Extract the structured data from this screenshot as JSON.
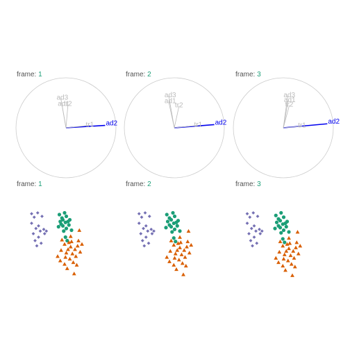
{
  "frame_label": "frame:",
  "frames": [
    1,
    2,
    3
  ],
  "colors": {
    "title_text": "#555555",
    "frame_number": "#1b9e77",
    "circle": "#cccccc",
    "axis_muted": "#bbbbbb",
    "axis_highlight": "#0000ee",
    "cluster_a": "#7570b3",
    "cluster_b": "#1b9e77",
    "cluster_c": "#d95f02"
  },
  "chart_data": [
    {
      "type": "biplot-axes",
      "frame": 1,
      "highlight": "ad2",
      "axes": [
        {
          "name": "ad1",
          "x": -0.1,
          "y": 0.58
        },
        {
          "name": "ad2",
          "x": 0.98,
          "y": 0.06
        },
        {
          "name": "ad3",
          "x": -0.13,
          "y": 0.74
        },
        {
          "name": "tr1",
          "x": 0.6,
          "y": 0.06
        },
        {
          "name": "tr2",
          "x": 0.05,
          "y": 0.58
        }
      ]
    },
    {
      "type": "biplot-axes",
      "frame": 2,
      "highlight": "ad2",
      "axes": [
        {
          "name": "ad1",
          "x": -0.14,
          "y": 0.65
        },
        {
          "name": "ad2",
          "x": 1.0,
          "y": 0.08
        },
        {
          "name": "ad3",
          "x": -0.14,
          "y": 0.8
        },
        {
          "name": "tr1",
          "x": 0.6,
          "y": 0.06
        },
        {
          "name": "tr2",
          "x": 0.12,
          "y": 0.55
        }
      ]
    },
    {
      "type": "biplot-axes",
      "frame": 3,
      "highlight": "ad2",
      "axes": [
        {
          "name": "ad1",
          "x": 0.12,
          "y": 0.68
        },
        {
          "name": "ad2",
          "x": 1.1,
          "y": 0.1
        },
        {
          "name": "ad3",
          "x": 0.11,
          "y": 0.8
        },
        {
          "name": "tr1",
          "x": 0.47,
          "y": 0.04
        },
        {
          "name": "tr2",
          "x": 0.15,
          "y": 0.56
        }
      ]
    },
    {
      "type": "scatter",
      "frame": 1,
      "series": [
        {
          "group": "a",
          "points": [
            [
              -3.0,
              2.9
            ],
            [
              -2.3,
              3.0
            ],
            [
              -2.7,
              2.5
            ],
            [
              -1.8,
              2.6
            ],
            [
              -3.0,
              1.8
            ],
            [
              -2.2,
              1.5
            ],
            [
              -1.6,
              1.1
            ],
            [
              -2.5,
              1.2
            ],
            [
              -2.0,
              0.9
            ],
            [
              -2.8,
              0.6
            ],
            [
              -2.2,
              0.2
            ],
            [
              -1.5,
              0.6
            ],
            [
              -2.6,
              -0.2
            ],
            [
              -1.9,
              -0.5
            ],
            [
              -2.4,
              -0.8
            ],
            [
              -1.3,
              0.9
            ]
          ]
        },
        {
          "group": "b",
          "points": [
            [
              0.2,
              2.8
            ],
            [
              0.8,
              3.0
            ],
            [
              0.5,
              2.4
            ],
            [
              1.0,
              2.6
            ],
            [
              1.4,
              2.2
            ],
            [
              0.3,
              2.0
            ],
            [
              0.9,
              1.9
            ],
            [
              1.3,
              1.6
            ],
            [
              0.6,
              1.5
            ],
            [
              0.1,
              1.4
            ],
            [
              1.0,
              1.2
            ],
            [
              1.6,
              1.0
            ],
            [
              0.7,
              0.9
            ],
            [
              0.4,
              1.7
            ],
            [
              1.2,
              2.0
            ],
            [
              0.9,
              0.2
            ],
            [
              1.1,
              -0.2
            ],
            [
              0.6,
              2.2
            ]
          ]
        },
        {
          "group": "c",
          "points": [
            [
              2.5,
              1.0
            ],
            [
              1.5,
              0.3
            ],
            [
              0.5,
              -0.1
            ],
            [
              1.6,
              -0.3
            ],
            [
              2.4,
              -0.2
            ],
            [
              0.8,
              -0.6
            ],
            [
              1.5,
              -0.9
            ],
            [
              2.3,
              -0.8
            ],
            [
              1.2,
              -1.2
            ],
            [
              0.4,
              -1.3
            ],
            [
              2.0,
              -1.2
            ],
            [
              1.0,
              -1.6
            ],
            [
              2.6,
              -1.5
            ],
            [
              1.7,
              -1.7
            ],
            [
              0.0,
              -2.0
            ],
            [
              0.9,
              -2.1
            ],
            [
              1.4,
              -2.3
            ],
            [
              2.1,
              -2.0
            ],
            [
              0.3,
              -2.5
            ],
            [
              1.8,
              -2.7
            ],
            [
              0.8,
              -2.9
            ],
            [
              2.2,
              -3.0
            ],
            [
              1.1,
              -3.4
            ],
            [
              1.9,
              -4.0
            ],
            [
              1.3,
              -0.4
            ],
            [
              2.8,
              -0.6
            ]
          ]
        }
      ]
    },
    {
      "type": "scatter",
      "frame": 2,
      "series": [
        {
          "group": "a",
          "points": [
            [
              -3.1,
              2.9
            ],
            [
              -2.4,
              3.0
            ],
            [
              -2.8,
              2.5
            ],
            [
              -1.9,
              2.6
            ],
            [
              -3.1,
              1.8
            ],
            [
              -2.3,
              1.5
            ],
            [
              -1.7,
              1.1
            ],
            [
              -2.6,
              1.2
            ],
            [
              -2.1,
              0.9
            ],
            [
              -2.9,
              0.6
            ],
            [
              -2.3,
              0.2
            ],
            [
              -1.6,
              0.6
            ],
            [
              -2.7,
              -0.2
            ],
            [
              -2.0,
              -0.5
            ],
            [
              -2.5,
              -0.8
            ],
            [
              -1.4,
              0.9
            ]
          ]
        },
        {
          "group": "b",
          "points": [
            [
              0.1,
              2.8
            ],
            [
              0.8,
              3.0
            ],
            [
              0.4,
              2.4
            ],
            [
              1.0,
              2.6
            ],
            [
              1.4,
              2.1
            ],
            [
              0.2,
              2.0
            ],
            [
              0.9,
              1.8
            ],
            [
              1.3,
              1.5
            ],
            [
              0.6,
              1.4
            ],
            [
              0.0,
              1.3
            ],
            [
              1.0,
              1.1
            ],
            [
              1.6,
              0.9
            ],
            [
              0.7,
              0.8
            ],
            [
              0.4,
              1.6
            ],
            [
              1.2,
              1.9
            ],
            [
              0.9,
              0.1
            ],
            [
              1.1,
              -0.3
            ],
            [
              0.6,
              2.2
            ]
          ]
        },
        {
          "group": "c",
          "points": [
            [
              2.6,
              0.9
            ],
            [
              1.6,
              0.2
            ],
            [
              0.6,
              -0.2
            ],
            [
              1.7,
              -0.4
            ],
            [
              2.5,
              -0.3
            ],
            [
              0.9,
              -0.7
            ],
            [
              1.6,
              -1.0
            ],
            [
              2.4,
              -0.9
            ],
            [
              1.3,
              -1.3
            ],
            [
              0.5,
              -1.4
            ],
            [
              2.1,
              -1.3
            ],
            [
              1.1,
              -1.7
            ],
            [
              2.7,
              -1.6
            ],
            [
              1.8,
              -1.8
            ],
            [
              0.1,
              -2.1
            ],
            [
              1.0,
              -2.2
            ],
            [
              1.5,
              -2.4
            ],
            [
              2.2,
              -2.1
            ],
            [
              0.4,
              -2.6
            ],
            [
              1.9,
              -2.8
            ],
            [
              0.9,
              -3.0
            ],
            [
              2.3,
              -3.1
            ],
            [
              1.2,
              -3.5
            ],
            [
              2.0,
              -4.1
            ],
            [
              1.4,
              -0.5
            ],
            [
              2.9,
              -0.7
            ]
          ]
        }
      ]
    },
    {
      "type": "scatter",
      "frame": 3,
      "series": [
        {
          "group": "a",
          "points": [
            [
              -3.2,
              2.9
            ],
            [
              -2.5,
              3.0
            ],
            [
              -2.9,
              2.5
            ],
            [
              -2.0,
              2.6
            ],
            [
              -3.2,
              1.8
            ],
            [
              -2.4,
              1.5
            ],
            [
              -1.8,
              1.1
            ],
            [
              -2.7,
              1.2
            ],
            [
              -2.2,
              0.9
            ],
            [
              -3.0,
              0.6
            ],
            [
              -2.4,
              0.2
            ],
            [
              -1.7,
              0.6
            ],
            [
              -2.8,
              -0.2
            ],
            [
              -2.1,
              -0.5
            ],
            [
              -2.6,
              -0.8
            ],
            [
              -1.5,
              0.9
            ]
          ]
        },
        {
          "group": "b",
          "points": [
            [
              0.1,
              2.7
            ],
            [
              0.7,
              3.0
            ],
            [
              0.4,
              2.3
            ],
            [
              1.0,
              2.5
            ],
            [
              1.4,
              2.0
            ],
            [
              0.2,
              1.9
            ],
            [
              0.9,
              1.7
            ],
            [
              1.3,
              1.4
            ],
            [
              0.6,
              1.3
            ],
            [
              0.0,
              1.2
            ],
            [
              1.0,
              1.0
            ],
            [
              1.6,
              0.8
            ],
            [
              0.7,
              0.7
            ],
            [
              0.4,
              1.5
            ],
            [
              1.2,
              1.8
            ],
            [
              0.9,
              0.0
            ],
            [
              1.1,
              -0.4
            ],
            [
              0.6,
              2.1
            ]
          ]
        },
        {
          "group": "c",
          "points": [
            [
              2.6,
              0.8
            ],
            [
              1.6,
              0.1
            ],
            [
              0.6,
              -0.3
            ],
            [
              1.7,
              -0.5
            ],
            [
              2.5,
              -0.4
            ],
            [
              0.9,
              -0.8
            ],
            [
              1.6,
              -1.1
            ],
            [
              2.4,
              -1.0
            ],
            [
              1.3,
              -1.4
            ],
            [
              0.5,
              -1.5
            ],
            [
              2.1,
              -1.4
            ],
            [
              1.1,
              -1.8
            ],
            [
              2.7,
              -1.7
            ],
            [
              1.8,
              -1.9
            ],
            [
              0.1,
              -2.2
            ],
            [
              1.0,
              -2.3
            ],
            [
              1.5,
              -2.5
            ],
            [
              2.2,
              -2.2
            ],
            [
              0.4,
              -2.7
            ],
            [
              1.9,
              -2.9
            ],
            [
              0.9,
              -3.1
            ],
            [
              2.3,
              -3.2
            ],
            [
              1.2,
              -3.6
            ],
            [
              2.0,
              -4.2
            ],
            [
              1.4,
              -0.6
            ],
            [
              2.9,
              -0.8
            ]
          ]
        }
      ]
    }
  ]
}
